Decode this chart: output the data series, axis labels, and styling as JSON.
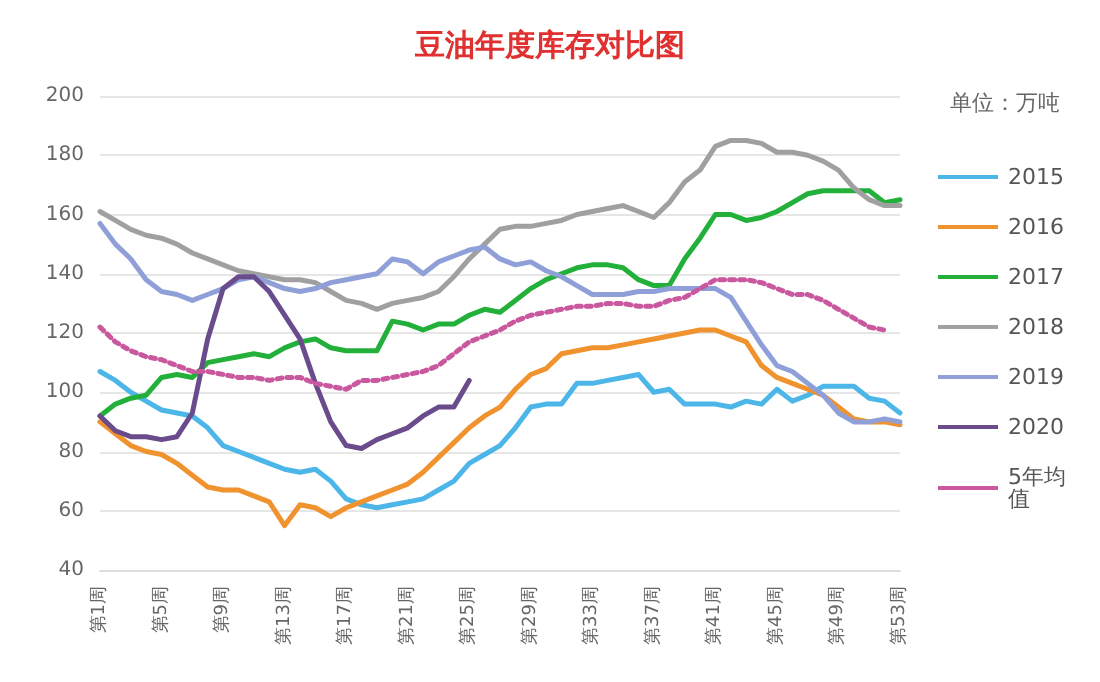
{
  "chart_data": {
    "type": "line",
    "title": "豆油年度库存对比图",
    "annotations": [
      "单位：万吨"
    ],
    "categories": [
      "第1周",
      null,
      null,
      null,
      "第5周",
      null,
      null,
      null,
      "第9周",
      null,
      null,
      null,
      "第13周",
      null,
      null,
      null,
      "第17周",
      null,
      null,
      null,
      "第21周",
      null,
      null,
      null,
      "第25周",
      null,
      null,
      null,
      "第29周",
      null,
      null,
      null,
      "第33周",
      null,
      null,
      null,
      "第37周",
      null,
      null,
      null,
      "第41周",
      null,
      null,
      null,
      "第45周",
      null,
      null,
      null,
      "第49周",
      null,
      null,
      null,
      "第53周"
    ],
    "ylim": [
      40,
      200
    ],
    "yticks": [
      40,
      60,
      80,
      100,
      120,
      140,
      160,
      180,
      200
    ],
    "grid": "y",
    "legend": "right",
    "marker": "none",
    "series": [
      {
        "name": "2015",
        "color": "#4db6e8",
        "line_style": "solid",
        "values": [
          107,
          104,
          100,
          97,
          94,
          93,
          92,
          88,
          82,
          80,
          78,
          76,
          74,
          73,
          74,
          70,
          64,
          62,
          61,
          62,
          63,
          64,
          67,
          70,
          76,
          79,
          82,
          88,
          95,
          96,
          96,
          103,
          103,
          104,
          105,
          106,
          100,
          101,
          96,
          96,
          96,
          95,
          97,
          96,
          101,
          97,
          99,
          102,
          102,
          102,
          98,
          97,
          93
        ]
      },
      {
        "name": "2016",
        "color": "#f0922e",
        "line_style": "solid",
        "values": [
          90,
          86,
          82,
          80,
          79,
          76,
          72,
          68,
          67,
          67,
          65,
          63,
          55,
          62,
          61,
          58,
          61,
          63,
          65,
          67,
          69,
          73,
          78,
          83,
          88,
          92,
          95,
          101,
          106,
          108,
          113,
          114,
          115,
          115,
          116,
          117,
          118,
          119,
          120,
          121,
          121,
          119,
          117,
          109,
          105,
          103,
          101,
          99,
          95,
          91,
          90,
          90,
          89
        ]
      },
      {
        "name": "2017",
        "color": "#22b03a",
        "line_style": "solid",
        "values": [
          92,
          96,
          98,
          99,
          105,
          106,
          105,
          110,
          111,
          112,
          113,
          112,
          115,
          117,
          118,
          115,
          114,
          114,
          114,
          124,
          123,
          121,
          123,
          123,
          126,
          128,
          127,
          131,
          135,
          138,
          140,
          142,
          143,
          143,
          142,
          138,
          136,
          136,
          145,
          152,
          160,
          160,
          158,
          159,
          161,
          164,
          167,
          168,
          168,
          168,
          168,
          164,
          165
        ]
      },
      {
        "name": "2018",
        "color": "#a0a0a0",
        "line_style": "solid",
        "values": [
          161,
          158,
          155,
          153,
          152,
          150,
          147,
          145,
          143,
          141,
          140,
          139,
          138,
          138,
          137,
          134,
          131,
          130,
          128,
          130,
          131,
          132,
          134,
          139,
          145,
          150,
          155,
          156,
          156,
          157,
          158,
          160,
          161,
          162,
          163,
          161,
          159,
          164,
          171,
          175,
          183,
          185,
          185,
          184,
          181,
          181,
          180,
          178,
          175,
          169,
          165,
          163,
          163
        ]
      },
      {
        "name": "2019",
        "color": "#8fa0d8",
        "line_style": "solid",
        "values": [
          157,
          150,
          145,
          138,
          134,
          133,
          131,
          133,
          135,
          138,
          139,
          137,
          135,
          134,
          135,
          137,
          138,
          139,
          140,
          145,
          144,
          140,
          144,
          146,
          148,
          149,
          145,
          143,
          144,
          141,
          139,
          136,
          133,
          133,
          133,
          134,
          134,
          135,
          135,
          135,
          135,
          132,
          124,
          116,
          109,
          107,
          103,
          99,
          93,
          90,
          90,
          91,
          90
        ]
      },
      {
        "name": "2020",
        "color": "#6a4c8c",
        "line_style": "solid",
        "values": [
          92,
          87,
          85,
          85,
          84,
          85,
          93,
          118,
          135,
          139,
          139,
          134,
          126,
          118,
          103,
          90,
          82,
          81,
          84,
          86,
          88,
          92,
          95,
          95,
          104,
          null,
          null,
          null,
          null,
          null,
          null,
          null,
          null,
          null,
          null,
          null,
          null,
          null,
          null,
          null,
          null,
          null,
          null,
          null,
          null,
          null,
          null,
          null,
          null,
          null,
          null,
          null,
          null
        ]
      },
      {
        "name": "5年均值",
        "color": "#c9589e",
        "line_style": "dotted",
        "values": [
          122,
          117,
          114,
          112,
          111,
          109,
          107,
          107,
          106,
          105,
          105,
          104,
          105,
          105,
          103,
          102,
          101,
          104,
          104,
          105,
          106,
          107,
          109,
          113,
          117,
          119,
          121,
          124,
          126,
          127,
          128,
          129,
          129,
          130,
          130,
          129,
          129,
          131,
          132,
          135,
          138,
          138,
          138,
          137,
          135,
          133,
          133,
          131,
          128,
          125,
          122,
          121,
          null
        ]
      }
    ]
  }
}
